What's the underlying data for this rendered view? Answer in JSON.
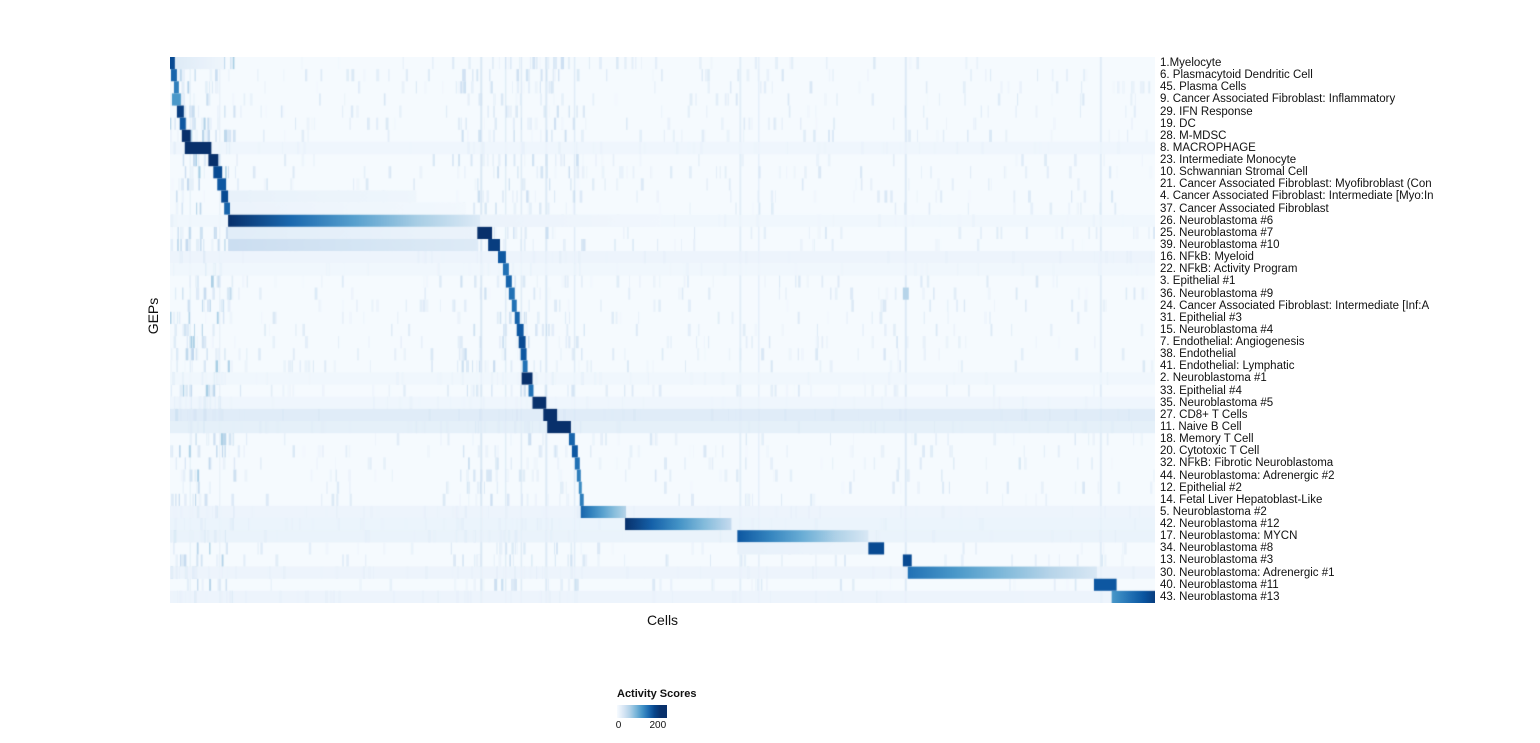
{
  "chart_data": {
    "type": "heatmap",
    "xlabel": "Cells",
    "ylabel": "GEPs",
    "colorbar": {
      "title": "Activity Scores",
      "min": 0,
      "max": 200,
      "gradient_max": 245,
      "colormap_stops": [
        "#f7fbff",
        "#deebf7",
        "#c6dbef",
        "#9ecae1",
        "#6baed6",
        "#4292c6",
        "#2171b5",
        "#08519c",
        "#08306b"
      ],
      "ticks": [
        {
          "label": "0",
          "pos": 0.03
        },
        {
          "label": "200",
          "pos": 0.816
        }
      ]
    },
    "rows": [
      {
        "label": "1.Myelocyte",
        "blocks": [
          [
            0.0,
            0.005,
            180,
            180
          ],
          [
            0.005,
            0.055,
            25,
            8
          ]
        ]
      },
      {
        "label": "6. Plasmacytoid Dendritic Cell",
        "blocks": [
          [
            0.001,
            0.007,
            160,
            160
          ]
        ]
      },
      {
        "label": "45. Plasma Cells",
        "blocks": [
          [
            0.004,
            0.009,
            140,
            140
          ]
        ]
      },
      {
        "label": "9. Cancer Associated Fibroblast: Inflammatory",
        "blocks": [
          [
            0.002,
            0.011,
            120,
            120
          ]
        ]
      },
      {
        "label": "29. IFN Response",
        "blocks": [
          [
            0.007,
            0.014,
            190,
            190
          ]
        ]
      },
      {
        "label": "19. DC",
        "blocks": [
          [
            0.01,
            0.016,
            170,
            170
          ]
        ]
      },
      {
        "label": "28. M-MDSC",
        "blocks": [
          [
            0.012,
            0.021,
            200,
            200
          ]
        ]
      },
      {
        "label": "8. MACROPHAGE",
        "band": 10,
        "blocks": [
          [
            0.015,
            0.042,
            200,
            200
          ]
        ]
      },
      {
        "label": "23. Intermediate Monocyte",
        "blocks": [
          [
            0.039,
            0.049,
            200,
            200
          ]
        ]
      },
      {
        "label": "10. Schwannian Stromal Cell",
        "blocks": [
          [
            0.044,
            0.053,
            180,
            180
          ]
        ]
      },
      {
        "label": "21. Cancer Associated Fibroblast: Myofibroblast (Con",
        "blocks": [
          [
            0.048,
            0.057,
            170,
            170
          ]
        ]
      },
      {
        "label": "4. Cancer Associated Fibroblast: Intermediate [Myo:In",
        "blocks": [
          [
            0.052,
            0.059,
            180,
            180
          ],
          [
            0.06,
            0.25,
            15,
            8
          ]
        ]
      },
      {
        "label": "37. Cancer Associated Fibroblast",
        "blocks": [
          [
            0.055,
            0.061,
            160,
            160
          ],
          [
            0.061,
            0.3,
            12,
            5
          ]
        ]
      },
      {
        "label": "26. Neuroblastoma #6",
        "band": 8,
        "blocks": [
          [
            0.059,
            0.315,
            200,
            25
          ],
          [
            0.315,
            0.5,
            12,
            6
          ]
        ]
      },
      {
        "label": "25. Neuroblastoma #7",
        "blocks": [
          [
            0.059,
            0.312,
            22,
            12
          ],
          [
            0.312,
            0.327,
            200,
            200
          ]
        ]
      },
      {
        "label": "39. Neuroblastoma #10",
        "blocks": [
          [
            0.059,
            0.313,
            45,
            25
          ],
          [
            0.323,
            0.335,
            190,
            190
          ]
        ]
      },
      {
        "label": "16. NFkB: Myeloid",
        "band": 12,
        "blocks": [
          [
            0.333,
            0.341,
            170,
            170
          ]
        ]
      },
      {
        "label": "22. NFkB: Activity Program",
        "band": 8,
        "blocks": [
          [
            0.338,
            0.344,
            150,
            150
          ]
        ]
      },
      {
        "label": "3. Epithelial #1",
        "blocks": [
          [
            0.341,
            0.347,
            160,
            160
          ]
        ]
      },
      {
        "label": "36. Neuroblastoma #9",
        "blocks": [
          [
            0.344,
            0.35,
            150,
            150
          ],
          [
            0.744,
            0.75,
            60,
            60
          ]
        ]
      },
      {
        "label": "24. Cancer Associated Fibroblast: Intermediate [Inf:A",
        "blocks": [
          [
            0.347,
            0.352,
            150,
            150
          ]
        ]
      },
      {
        "label": "31. Epithelial #3",
        "blocks": [
          [
            0.35,
            0.355,
            160,
            160
          ]
        ]
      },
      {
        "label": "15. Neuroblastoma #4",
        "blocks": [
          [
            0.352,
            0.359,
            170,
            170
          ]
        ]
      },
      {
        "label": "7. Endothelial: Angiogenesis",
        "blocks": [
          [
            0.354,
            0.361,
            180,
            180
          ]
        ]
      },
      {
        "label": "38. Endothelial",
        "blocks": [
          [
            0.356,
            0.362,
            170,
            170
          ]
        ]
      },
      {
        "label": "41. Endothelial: Lymphatic",
        "blocks": [
          [
            0.358,
            0.363,
            150,
            150
          ]
        ]
      },
      {
        "label": "2. Neuroblastoma #1",
        "band": 8,
        "blocks": [
          [
            0.357,
            0.368,
            200,
            200
          ]
        ]
      },
      {
        "label": "33. Epithelial #4",
        "blocks": [
          [
            0.364,
            0.369,
            150,
            150
          ]
        ]
      },
      {
        "label": "35. Neuroblastoma #5",
        "band": 10,
        "blocks": [
          [
            0.368,
            0.382,
            200,
            200
          ]
        ]
      },
      {
        "label": "27. CD8+ T Cells",
        "band": 28,
        "blocks": [
          [
            0.379,
            0.393,
            200,
            200
          ]
        ]
      },
      {
        "label": "11. Naive B Cell",
        "band": 22,
        "blocks": [
          [
            0.383,
            0.407,
            200,
            200
          ]
        ]
      },
      {
        "label": "18. Memory T Cell",
        "blocks": [
          [
            0.405,
            0.411,
            160,
            160
          ]
        ]
      },
      {
        "label": "20. Cytotoxic T Cell",
        "blocks": [
          [
            0.408,
            0.414,
            170,
            170
          ]
        ]
      },
      {
        "label": "32. NFkB: Fibrotic Neuroblastoma",
        "blocks": [
          [
            0.411,
            0.416,
            150,
            150
          ]
        ]
      },
      {
        "label": "44. Neuroblastoma: Adrenergic #2",
        "blocks": [
          [
            0.413,
            0.417,
            140,
            140
          ]
        ]
      },
      {
        "label": "12. Epithelial #2",
        "blocks": [
          [
            0.415,
            0.418,
            130,
            130
          ]
        ]
      },
      {
        "label": "14. Fetal Liver Hepatoblast-Like",
        "blocks": [
          [
            0.416,
            0.42,
            140,
            140
          ]
        ]
      },
      {
        "label": "5. Neuroblastoma #2",
        "band": 12,
        "blocks": [
          [
            0.417,
            0.463,
            160,
            60
          ]
        ]
      },
      {
        "label": "42. Neuroblastoma #12",
        "band": 14,
        "blocks": [
          [
            0.462,
            0.57,
            200,
            50
          ]
        ]
      },
      {
        "label": "17. Neuroblastoma: MYCN",
        "band": 16,
        "blocks": [
          [
            0.576,
            0.709,
            170,
            30
          ]
        ]
      },
      {
        "label": "34. Neuroblastoma #8",
        "blocks": [
          [
            0.576,
            0.709,
            15,
            10
          ],
          [
            0.709,
            0.725,
            180,
            180
          ]
        ]
      },
      {
        "label": "13. Neuroblastoma #3",
        "blocks": [
          [
            0.744,
            0.753,
            180,
            180
          ]
        ]
      },
      {
        "label": "30. Neuroblastoma: Adrenergic #1",
        "band": 12,
        "blocks": [
          [
            0.749,
            0.941,
            150,
            30
          ]
        ]
      },
      {
        "label": "40. Neuroblastoma #11",
        "blocks": [
          [
            0.938,
            0.961,
            170,
            170
          ]
        ]
      },
      {
        "label": "43. Neuroblastoma #13",
        "band": 12,
        "blocks": [
          [
            0.956,
            1.0,
            120,
            190
          ]
        ]
      }
    ],
    "streaks": [
      [
        0.315,
        0.002,
        50
      ],
      [
        0.34,
        0.0015,
        40
      ],
      [
        0.356,
        0.0015,
        40
      ],
      [
        0.381,
        0.002,
        45
      ],
      [
        0.41,
        0.0015,
        40
      ],
      [
        0.578,
        0.002,
        35
      ],
      [
        0.597,
        0.0015,
        30
      ],
      [
        0.746,
        0.002,
        45
      ],
      [
        0.944,
        0.002,
        40
      ],
      [
        0.02,
        0.001,
        35
      ],
      [
        0.05,
        0.001,
        30
      ]
    ],
    "noise": [
      {
        "seed": 7,
        "count": 1600,
        "x0": 0.0,
        "x1": 1.0,
        "v0": 4,
        "v1": 30
      },
      {
        "seed": 11,
        "count": 320,
        "x0": 0.0,
        "x1": 0.065,
        "v0": 8,
        "v1": 70
      },
      {
        "seed": 23,
        "count": 380,
        "x0": 0.29,
        "x1": 0.42,
        "v0": 5,
        "v1": 45
      }
    ]
  }
}
